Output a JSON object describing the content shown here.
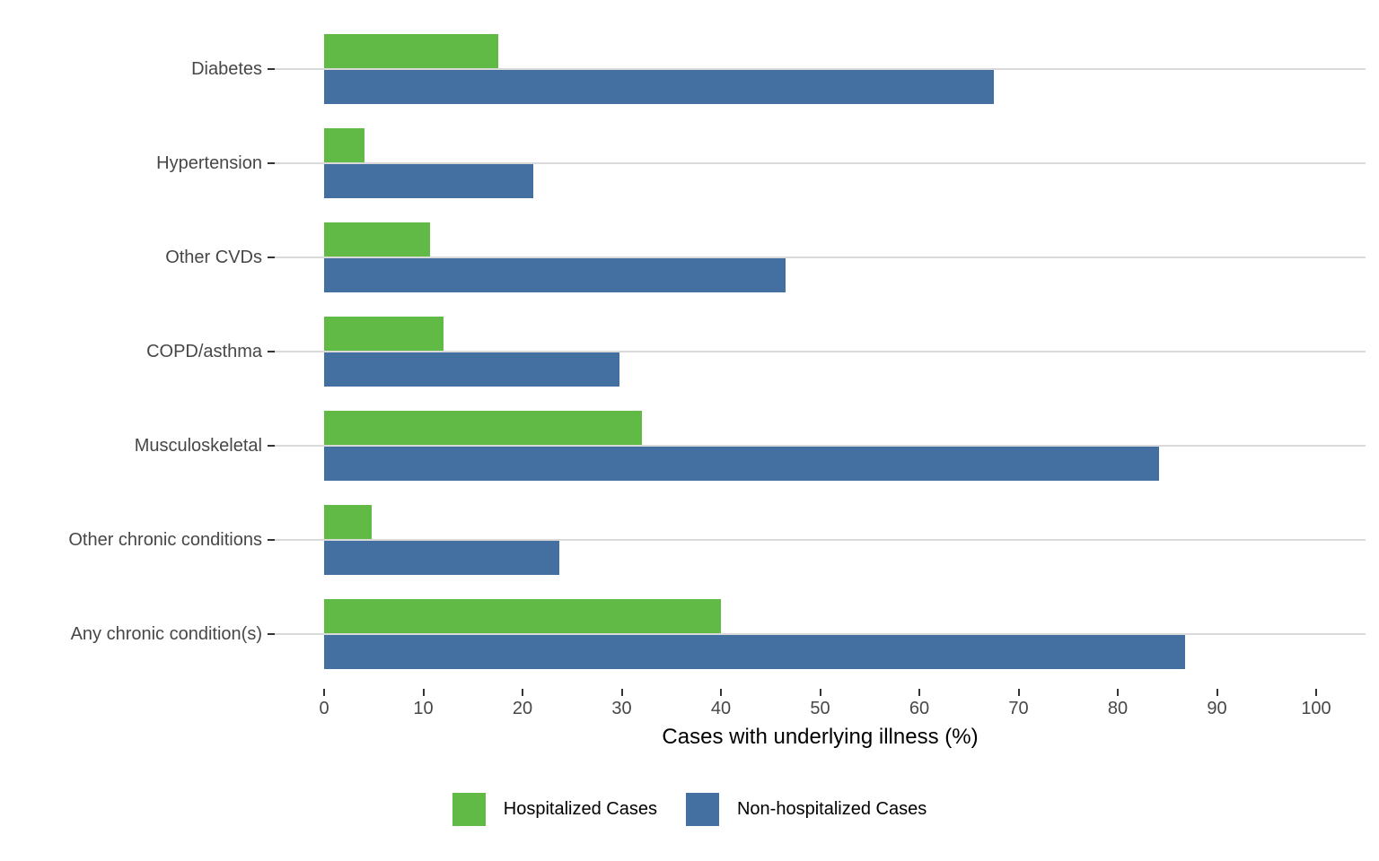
{
  "chart_data": {
    "type": "bar",
    "orientation": "horizontal",
    "title": "",
    "xlabel": "Cases with underlying illness (%)",
    "ylabel": "",
    "xlim": [
      0,
      100
    ],
    "xticks": [
      0,
      10,
      20,
      30,
      40,
      50,
      60,
      70,
      80,
      90,
      100
    ],
    "grid": "horizontal category gridlines only",
    "legend_position": "bottom",
    "categories": [
      "Diabetes",
      "Hypertension",
      "Other CVDs",
      "COPD/asthma",
      "Musculoskeletal",
      "Other chronic conditions",
      "Any chronic condition(s)"
    ],
    "series": [
      {
        "name": "Hospitalized Cases",
        "color": "#62ba46",
        "values": [
          17.6,
          4.1,
          10.7,
          12.0,
          32.0,
          4.8,
          40.0
        ]
      },
      {
        "name": "Non-hospitalized Cases",
        "color": "#4470a1",
        "values": [
          67.5,
          21.1,
          46.5,
          29.8,
          84.2,
          23.7,
          86.8
        ]
      }
    ],
    "colors": {
      "gridline": "#d9d9d9",
      "tick": "#333333",
      "tick_label": "#474747",
      "axis_title": "#000000"
    }
  }
}
